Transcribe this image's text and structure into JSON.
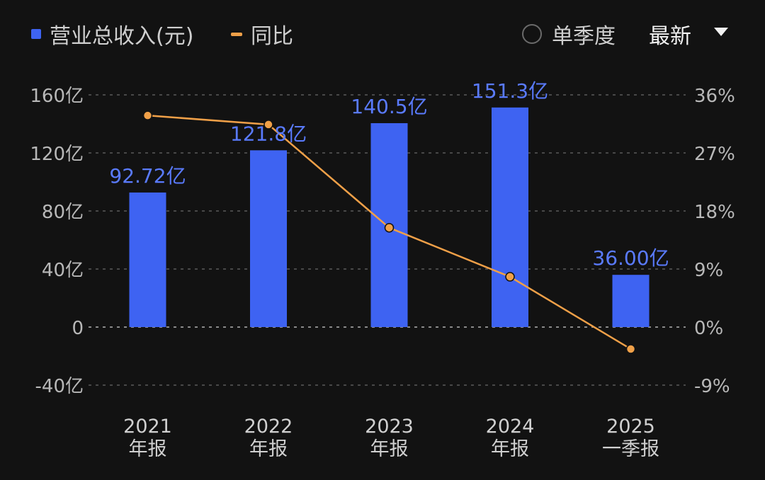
{
  "legend": {
    "revenue_label": "营业总收入(元)",
    "yoy_label": "同比",
    "single_quarter_label": "单季度",
    "latest_label": "最新"
  },
  "colors": {
    "bar": "#3E63F2",
    "bar_label": "#5A7BFF",
    "line": "#F0A048",
    "grid": "#5a5a5a",
    "tick": "#b8b8b8"
  },
  "chart_data": {
    "type": "bar",
    "categories": [
      [
        "2021",
        "年报"
      ],
      [
        "2022",
        "年报"
      ],
      [
        "2023",
        "年报"
      ],
      [
        "2024",
        "年报"
      ],
      [
        "2025",
        "一季报"
      ]
    ],
    "series": [
      {
        "name": "营业总收入(元)",
        "type": "bar",
        "axis": "left",
        "values": [
          92.72,
          121.8,
          140.5,
          151.3,
          36.0
        ],
        "data_labels": [
          "92.72亿",
          "121.8亿",
          "140.5亿",
          "151.3亿",
          "36.00亿"
        ]
      },
      {
        "name": "同比",
        "type": "line",
        "axis": "right",
        "values": [
          32.8,
          31.4,
          15.4,
          7.8,
          -3.4
        ]
      }
    ],
    "y_left": {
      "ticks": [
        160,
        120,
        80,
        40,
        0,
        -40
      ],
      "tick_labels": [
        "160亿",
        "120亿",
        "80亿",
        "40亿",
        "0",
        "-40亿"
      ],
      "range": [
        -40,
        160
      ]
    },
    "y_right": {
      "ticks": [
        36,
        27,
        18,
        9,
        0,
        -9
      ],
      "tick_labels": [
        "36%",
        "27%",
        "18%",
        "9%",
        "0%",
        "-9%"
      ],
      "range": [
        -9,
        36
      ]
    },
    "grid": "dashed horizontal",
    "legend_position": "top-left"
  }
}
